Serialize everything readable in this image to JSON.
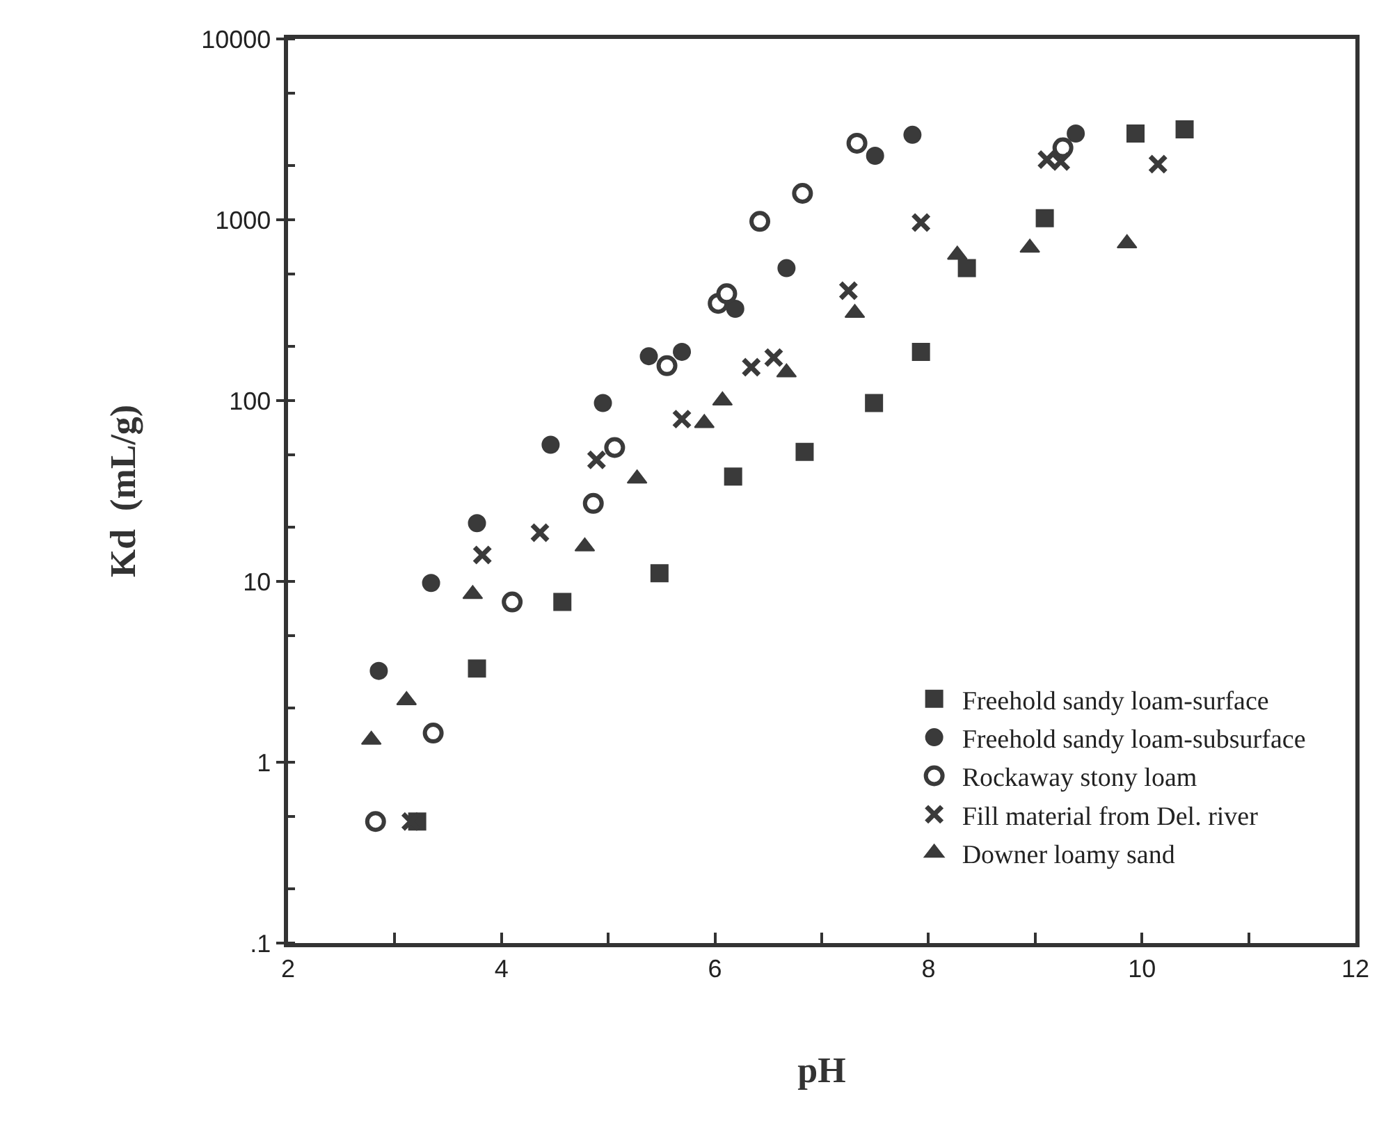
{
  "chart_data": {
    "type": "scatter",
    "xlabel": "pH",
    "ylabel": "Kd  (mL/g)",
    "log": "y",
    "grid": false,
    "legend": "bottom right",
    "xlim": [
      2,
      12
    ],
    "xticks": [
      2,
      {
        "value": 3,
        "label": null
      },
      4,
      {
        "value": 5,
        "label": null
      },
      6,
      {
        "value": 7,
        "label": null
      },
      8,
      {
        "value": 9,
        "label": null
      },
      10,
      {
        "value": 11,
        "label": null
      },
      12
    ],
    "ylim": [
      0.1,
      10000
    ],
    "yticks": [
      {
        "value": 0.1,
        "label": ".1"
      },
      1,
      10,
      100,
      1000,
      10000
    ],
    "series": [
      {
        "name": "Freehold sandy loam-surface",
        "color": "#3a3a3a",
        "marker": "square",
        "x": [
          3.21,
          3.77,
          4.57,
          5.48,
          6.17,
          6.84,
          7.49,
          7.93,
          8.36,
          9.09,
          9.94,
          10.4
        ],
        "values": [
          0.47,
          3.3,
          7.7,
          11.1,
          38,
          52,
          97,
          186,
          540,
          1020,
          3000,
          3160
        ]
      },
      {
        "name": "Freehold sandy loam-subsurface",
        "color": "#3a3a3a",
        "marker": "circle",
        "x": [
          2.85,
          3.34,
          3.77,
          4.46,
          4.95,
          5.38,
          5.69,
          6.19,
          6.67,
          7.5,
          7.85,
          9.38
        ],
        "values": [
          3.2,
          9.8,
          21,
          57,
          97,
          176,
          186,
          322,
          540,
          2260,
          2950,
          3000
        ]
      },
      {
        "name": "Rockaway stony loam",
        "color": "#ffffff",
        "marker": "circle",
        "x": [
          2.82,
          3.36,
          4.1,
          4.86,
          5.06,
          5.55,
          6.03,
          6.11,
          6.42,
          6.82,
          7.33,
          9.26
        ],
        "values": [
          0.47,
          1.45,
          7.7,
          27,
          55,
          156,
          345,
          390,
          980,
          1400,
          2650,
          2500
        ]
      },
      {
        "name": "Fill material from Del. river",
        "color": "#3a3a3a",
        "marker": "cross",
        "x": [
          3.15,
          3.82,
          4.36,
          4.89,
          5.69,
          6.34,
          6.55,
          7.25,
          7.93,
          9.11,
          9.24,
          10.15
        ],
        "values": [
          0.47,
          14,
          18.6,
          47,
          79,
          153,
          173,
          405,
          965,
          2150,
          2100,
          2030
        ]
      },
      {
        "name": "Downer loamy sand",
        "color": "#3a3a3a",
        "marker": "triangle",
        "x": [
          2.78,
          3.11,
          3.73,
          4.78,
          5.27,
          5.9,
          6.07,
          6.67,
          7.31,
          8.27,
          8.95,
          9.86
        ],
        "values": [
          1.33,
          2.2,
          8.5,
          15.6,
          37,
          75,
          100,
          143,
          305,
          640,
          700,
          740
        ]
      }
    ]
  }
}
